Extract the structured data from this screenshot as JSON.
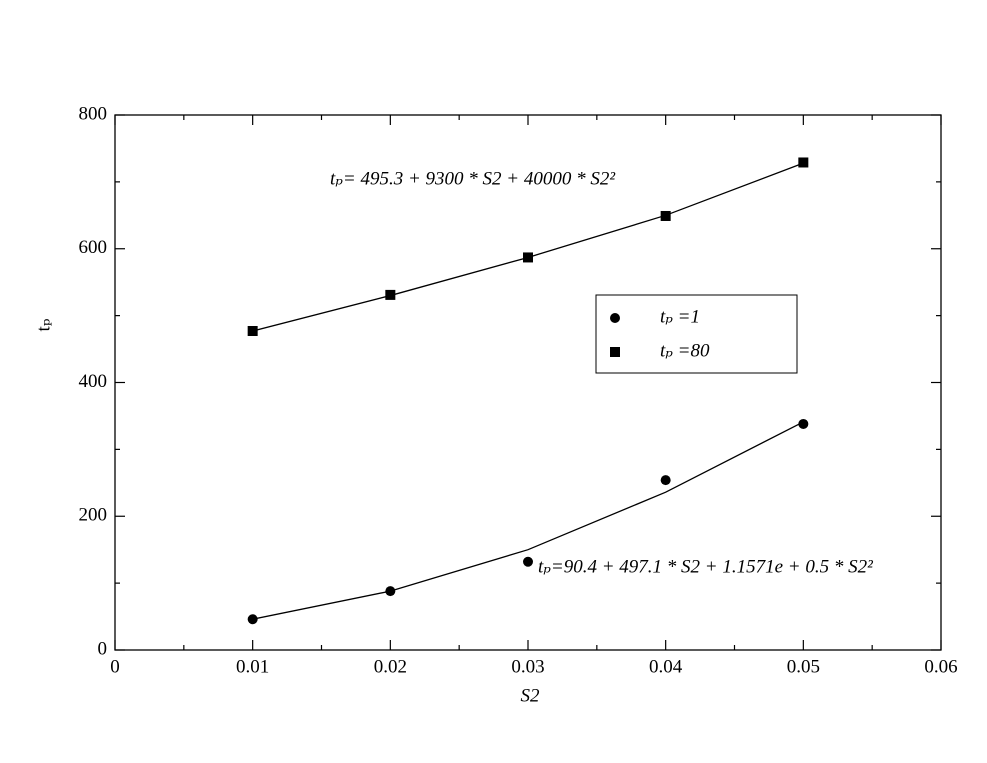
{
  "chart_data": {
    "type": "scatter",
    "x_label": "S2",
    "y_label": "tₚ",
    "annotations": [
      "tₚ= 495.3 + 9300 * S2 +  40000 * S2²",
      "tₚ=90.4 + 497.1 * S2 + 1.1571e + 0.5 * S2²"
    ],
    "x": [
      0.01,
      0.02,
      0.03,
      0.04,
      0.05
    ],
    "series": [
      {
        "name": "tₚ =1",
        "marker": "circle",
        "color": "#000000",
        "values": [
          46,
          88,
          132,
          254,
          338
        ]
      },
      {
        "name": "tₚ =80",
        "marker": "square",
        "color": "#000000",
        "values": [
          477,
          531,
          587,
          649,
          729
        ]
      },
      {
        "marker": "none",
        "color": "#000000",
        "values": [
          46,
          88,
          150,
          236,
          341
        ]
      },
      {
        "marker": "none",
        "color": "#000000",
        "values": [
          477,
          530,
          587,
          650,
          728
        ]
      }
    ],
    "xlim": [
      0,
      0.06
    ],
    "xticks": [
      0,
      0.01,
      0.02,
      0.03,
      0.04,
      0.05,
      0.06
    ],
    "xminorticks": [
      0.005,
      0.015,
      0.025,
      0.035,
      0.045,
      0.055
    ],
    "ylim": [
      0,
      800
    ],
    "yticks": [
      0,
      200,
      400,
      600,
      800
    ],
    "yminorticks": [
      100,
      300,
      500,
      700
    ],
    "legend": "center-right"
  }
}
